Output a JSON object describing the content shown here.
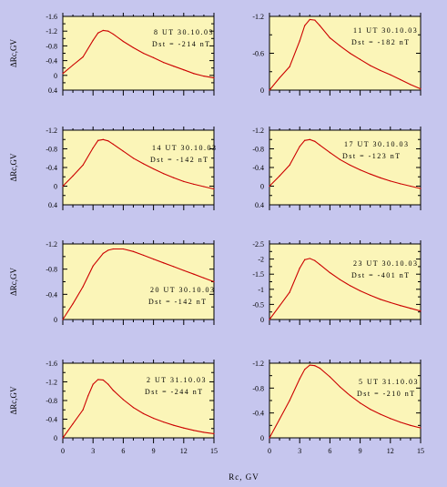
{
  "chart_data": {
    "type": "line",
    "xlabel": "Rc, GV",
    "x_ticks": [
      "0",
      "3",
      "6",
      "9",
      "12",
      "15"
    ],
    "xlim": [
      0,
      15
    ],
    "colors": {
      "plot_bg": "#fbf5b8",
      "curve": "#cc0000",
      "page_bg": "#c6c6ee"
    },
    "panels": [
      {
        "title": "8 UT 30.10.03",
        "dst": "Dst = -214 nT",
        "ylabel": "ΔRc,GV",
        "ylim": [
          -1.6,
          0.4
        ],
        "inverted": true,
        "y_ticks": [
          "-1.6",
          "-1.2",
          "-0.8",
          "-0.4",
          "0",
          "0.4"
        ],
        "x": [
          0,
          1,
          2,
          3,
          3.5,
          4,
          4.5,
          5,
          6,
          7,
          8,
          9,
          10,
          11,
          12,
          13,
          14,
          15
        ],
        "y": [
          -0.05,
          -0.28,
          -0.5,
          -0.95,
          -1.15,
          -1.22,
          -1.2,
          -1.12,
          -0.92,
          -0.75,
          -0.6,
          -0.48,
          -0.35,
          -0.25,
          -0.15,
          -0.05,
          0.02,
          0.07
        ]
      },
      {
        "title": "11 UT 30.10.03",
        "dst": "Dst = -182 nT",
        "ylabel": "",
        "ylim": [
          -1.2,
          0
        ],
        "inverted": true,
        "y_ticks": [
          "-1.2",
          "-0.6",
          "0"
        ],
        "x": [
          0,
          1,
          2,
          3,
          3.5,
          4,
          4.5,
          5,
          6,
          7,
          8,
          9,
          10,
          11,
          12,
          13,
          14,
          15
        ],
        "y": [
          0,
          -0.2,
          -0.38,
          -0.8,
          -1.05,
          -1.15,
          -1.14,
          -1.05,
          -0.85,
          -0.72,
          -0.6,
          -0.5,
          -0.4,
          -0.32,
          -0.25,
          -0.17,
          -0.09,
          -0.02
        ]
      },
      {
        "title": "14 UT 30.10.03",
        "dst": "Dst = -142 nT",
        "ylabel": "ΔRc,GV",
        "ylim": [
          -1.2,
          0.4
        ],
        "inverted": true,
        "y_ticks": [
          "-1.2",
          "-0.8",
          "-0.4",
          "0",
          "0.4"
        ],
        "x": [
          0,
          1,
          2,
          3,
          3.5,
          4,
          4.5,
          5,
          6,
          7,
          8,
          9,
          10,
          11,
          12,
          13,
          14,
          15
        ],
        "y": [
          0,
          -0.22,
          -0.45,
          -0.82,
          -0.98,
          -1.0,
          -0.97,
          -0.9,
          -0.75,
          -0.6,
          -0.48,
          -0.37,
          -0.27,
          -0.18,
          -0.1,
          -0.04,
          0.01,
          0.06
        ]
      },
      {
        "title": "17 UT 30.10.03",
        "dst": "Dst = -123 nT",
        "ylabel": "",
        "ylim": [
          -1.2,
          0.4
        ],
        "inverted": true,
        "y_ticks": [
          "-1.2",
          "-0.8",
          "-0.4",
          "0",
          "0.4"
        ],
        "x": [
          0,
          1,
          2,
          3,
          3.5,
          4,
          4.5,
          5,
          6,
          7,
          8,
          9,
          10,
          11,
          12,
          13,
          14,
          15
        ],
        "y": [
          0,
          -0.22,
          -0.45,
          -0.85,
          -0.98,
          -1.0,
          -0.96,
          -0.88,
          -0.72,
          -0.57,
          -0.45,
          -0.35,
          -0.26,
          -0.18,
          -0.11,
          -0.05,
          0.0,
          0.05
        ]
      },
      {
        "title": "20 UT 30.10.03",
        "dst": "Dst = -142 nT",
        "ylabel": "ΔRc,GV",
        "ylim": [
          -1.2,
          0
        ],
        "inverted": true,
        "y_ticks": [
          "-1.2",
          "-0.8",
          "-0.4",
          "0"
        ],
        "x": [
          0,
          1,
          2,
          3,
          4,
          4.5,
          5,
          6,
          7,
          8,
          9,
          10,
          11,
          12,
          13,
          14,
          15
        ],
        "y": [
          0,
          -0.25,
          -0.52,
          -0.85,
          -1.05,
          -1.1,
          -1.12,
          -1.12,
          -1.08,
          -1.02,
          -0.96,
          -0.9,
          -0.84,
          -0.78,
          -0.72,
          -0.66,
          -0.6
        ]
      },
      {
        "title": "23 UT 30.10.03",
        "dst": "Dst = -401 nT",
        "ylabel": "",
        "ylim": [
          -2.5,
          0
        ],
        "inverted": true,
        "y_ticks": [
          "-2.5",
          "-2",
          "-1.5",
          "-1",
          "-0.5",
          "0"
        ],
        "x": [
          0,
          1,
          2,
          3,
          3.5,
          4,
          4.5,
          5,
          6,
          7,
          8,
          9,
          10,
          11,
          12,
          13,
          14,
          15
        ],
        "y": [
          0,
          -0.45,
          -0.9,
          -1.7,
          -1.98,
          -2.02,
          -1.95,
          -1.82,
          -1.55,
          -1.32,
          -1.12,
          -0.95,
          -0.8,
          -0.67,
          -0.56,
          -0.46,
          -0.37,
          -0.28
        ]
      },
      {
        "title": "2 UT 31.10.03",
        "dst": "Dst = -244 nT",
        "ylabel": "ΔRc,GV",
        "ylim": [
          -1.6,
          0
        ],
        "inverted": true,
        "y_ticks": [
          "-1.6",
          "-1.2",
          "-0.8",
          "-0.4",
          "0"
        ],
        "x": [
          0,
          1,
          2,
          2.5,
          3,
          3.5,
          4,
          4.5,
          5,
          6,
          7,
          8,
          9,
          10,
          11,
          12,
          13,
          14,
          15
        ],
        "y": [
          0,
          -0.3,
          -0.6,
          -0.9,
          -1.15,
          -1.25,
          -1.24,
          -1.15,
          -1.02,
          -0.82,
          -0.65,
          -0.52,
          -0.42,
          -0.34,
          -0.27,
          -0.21,
          -0.16,
          -0.12,
          -0.09
        ]
      },
      {
        "title": "5 UT 31.10.03",
        "dst": "Dst = -210 nT",
        "ylabel": "",
        "ylim": [
          -1.2,
          0
        ],
        "inverted": true,
        "y_ticks": [
          "-1.2",
          "-0.8",
          "-0.4",
          "0"
        ],
        "x": [
          0,
          1,
          2,
          3,
          3.5,
          4,
          4.5,
          5,
          6,
          7,
          8,
          9,
          10,
          11,
          12,
          13,
          14,
          15
        ],
        "y": [
          0,
          -0.3,
          -0.6,
          -0.95,
          -1.1,
          -1.17,
          -1.16,
          -1.12,
          -0.98,
          -0.82,
          -0.68,
          -0.56,
          -0.46,
          -0.38,
          -0.31,
          -0.25,
          -0.2,
          -0.16
        ]
      }
    ]
  }
}
